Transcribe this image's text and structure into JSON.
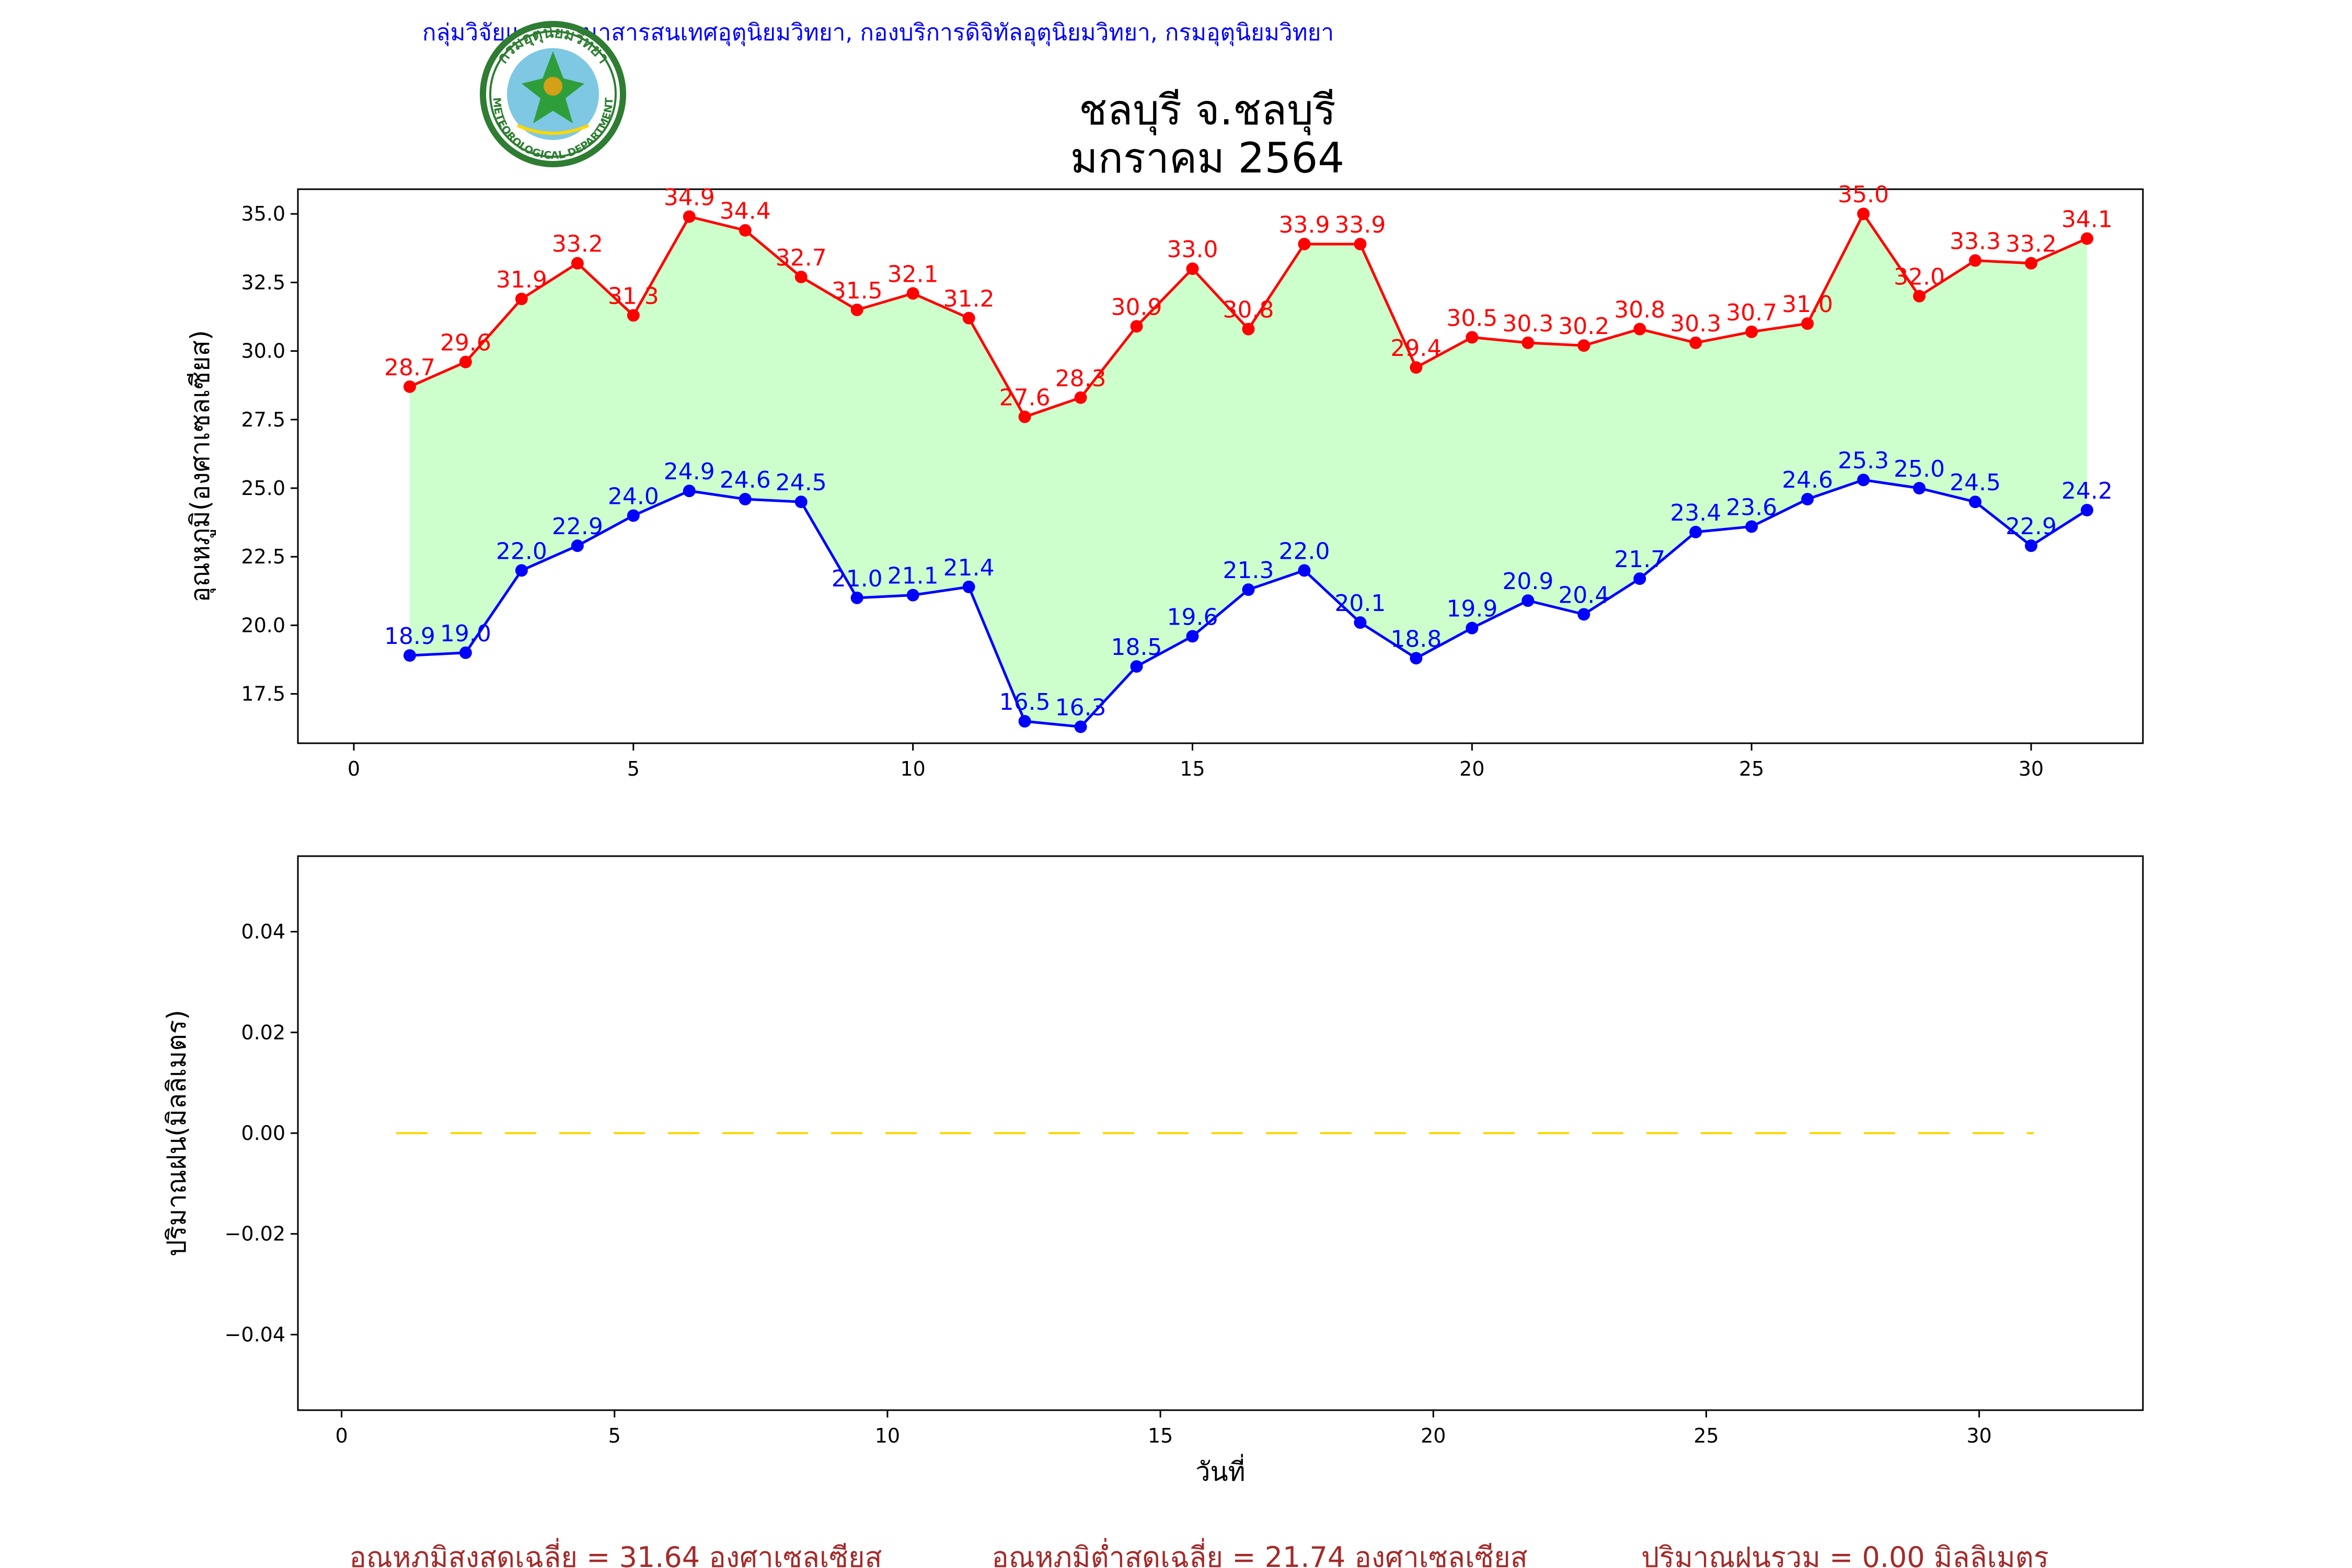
{
  "header": {
    "agency": "กลุ่มวิจัยและพัฒนาสารสนเทศอุตุนิยมวิทยา, กองบริการดิจิทัลอุตุนิยมวิทยา, กรมอุตุนิยมวิทยา",
    "logo_text_top": "กรมอุตุนิยมวิทยา",
    "logo_text_bottom": "METEOROLOGICAL DEPARTMENT"
  },
  "title": {
    "line1": "ชลบุรี จ.ชลบุรี",
    "line2": "มกราคม 2564"
  },
  "colors": {
    "max": "#ff0000",
    "min": "#0000ff",
    "fill": "#ccffcc",
    "rain": "#ffd700",
    "footer": "#a52a2a",
    "header": "#0000ff"
  },
  "chart_data": [
    {
      "type": "line",
      "ylabel": "อุณหภูมิ(องศาเซลเซียส)",
      "xlabel": "",
      "xlim": [
        -1,
        32
      ],
      "ylim": [
        15.7,
        35.9
      ],
      "xticks": [
        0,
        5,
        10,
        15,
        20,
        25,
        30
      ],
      "yticks": [
        "17.5",
        "20.0",
        "22.5",
        "25.0",
        "27.5",
        "30.0",
        "32.5",
        "35.0"
      ],
      "x": [
        1,
        2,
        3,
        4,
        5,
        6,
        7,
        8,
        9,
        10,
        11,
        12,
        13,
        14,
        15,
        16,
        17,
        18,
        19,
        20,
        21,
        22,
        23,
        24,
        25,
        26,
        27,
        28,
        29,
        30,
        31
      ],
      "series": [
        {
          "color": "#ff0000",
          "values": [
            28.7,
            29.6,
            31.9,
            33.2,
            31.3,
            34.9,
            34.4,
            32.7,
            31.5,
            32.1,
            31.2,
            27.6,
            28.3,
            30.9,
            33.0,
            30.8,
            33.9,
            33.9,
            29.4,
            30.5,
            30.3,
            30.2,
            30.8,
            30.3,
            30.7,
            31.0,
            35.0,
            32.0,
            33.3,
            33.2,
            34.1
          ],
          "labels": [
            "28.7",
            "29.6",
            "31.9",
            "33.2",
            "31.3",
            "34.9",
            "34.4",
            "32.7",
            "31.5",
            "32.1",
            "31.2",
            "27.6",
            "28.3",
            "30.9",
            "33.0",
            "30.8",
            "33.9",
            "33.9",
            "29.4",
            "30.5",
            "30.3",
            "30.2",
            "30.8",
            "30.3",
            "30.7",
            "31.0",
            "35.0",
            "32.0",
            "33.3",
            "33.2",
            "34.1"
          ]
        },
        {
          "color": "#0000ff",
          "values": [
            18.9,
            19.0,
            22.0,
            22.9,
            24.0,
            24.9,
            24.6,
            24.5,
            21.0,
            21.1,
            21.4,
            16.5,
            16.3,
            18.5,
            19.6,
            21.3,
            22.0,
            20.1,
            18.8,
            19.9,
            20.9,
            20.4,
            21.7,
            23.4,
            23.6,
            24.6,
            25.3,
            25.0,
            24.5,
            22.9,
            24.2
          ],
          "labels": [
            "18.9",
            "19.0",
            "22.0",
            "22.9",
            "24.0",
            "24.9",
            "24.6",
            "24.5",
            "21.0",
            "21.1",
            "21.4",
            "16.5",
            "16.3",
            "18.5",
            "19.6",
            "21.3",
            "22.0",
            "20.1",
            "18.8",
            "19.9",
            "20.9",
            "20.4",
            "21.7",
            "23.4",
            "23.6",
            "24.6",
            "25.3",
            "25.0",
            "24.5",
            "22.9",
            "24.2"
          ]
        }
      ],
      "fill_between": true,
      "grid": false
    },
    {
      "type": "line",
      "ylabel": "ปริมาณฝน(มิลลิเมตร)",
      "xlabel": "วันที่",
      "xlim": [
        -0.8,
        33.0
      ],
      "ylim": [
        -0.055,
        0.055
      ],
      "xticks": [
        0,
        5,
        10,
        15,
        20,
        25,
        30
      ],
      "yticks": [
        "−0.04",
        "−0.02",
        "0.00",
        "0.02",
        "0.04"
      ],
      "x": [
        1,
        2,
        3,
        4,
        5,
        6,
        7,
        8,
        9,
        10,
        11,
        12,
        13,
        14,
        15,
        16,
        17,
        18,
        19,
        20,
        21,
        22,
        23,
        24,
        25,
        26,
        27,
        28,
        29,
        30,
        31
      ],
      "series": [
        {
          "color": "#ffd700",
          "style": "dashed",
          "values": [
            0,
            0,
            0,
            0,
            0,
            0,
            0,
            0,
            0,
            0,
            0,
            0,
            0,
            0,
            0,
            0,
            0,
            0,
            0,
            0,
            0,
            0,
            0,
            0,
            0,
            0,
            0,
            0,
            0,
            0,
            0
          ]
        }
      ],
      "grid": false
    }
  ],
  "footer": {
    "avg_max": "อุณหภูมิสูงสุดเฉลี่ย = 31.64 องศาเซลเซียส",
    "avg_min": "อุณหภูมิต่ำสุดเฉลี่ย = 21.74 องศาเซลเซียส",
    "total_rain": "ปริมาณฝนรวม = 0.00 มิลลิเมตร"
  }
}
